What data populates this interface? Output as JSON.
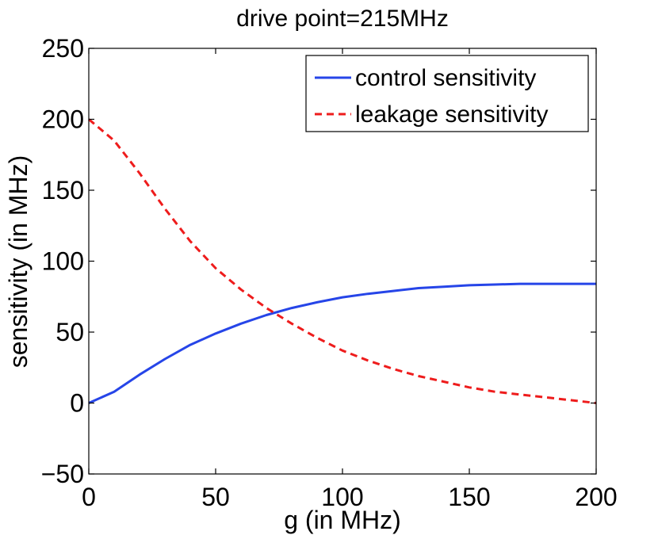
{
  "chart_data": {
    "type": "line",
    "title": "drive point=215MHz",
    "xlabel": "g  (in MHz)",
    "ylabel": "sensitivity (in MHz)",
    "xlim": [
      0,
      200
    ],
    "ylim": [
      -50,
      250
    ],
    "xticks": [
      0,
      50,
      100,
      150,
      200
    ],
    "yticks": [
      -50,
      0,
      50,
      100,
      150,
      200,
      250
    ],
    "ytick_labels": [
      "−50",
      "0",
      "50",
      "100",
      "150",
      "200",
      "250"
    ],
    "grid": false,
    "legend_position": "top-right",
    "x": [
      0,
      10,
      20,
      30,
      40,
      50,
      60,
      70,
      80,
      90,
      100,
      110,
      120,
      130,
      140,
      150,
      160,
      170,
      180,
      190,
      200
    ],
    "series": [
      {
        "name": "control sensitivity",
        "color": "#2645e8",
        "style": "solid",
        "values": [
          0,
          8,
          20,
          31,
          41,
          49,
          56,
          62,
          67,
          71,
          74.5,
          77,
          79,
          81,
          82,
          83,
          83.5,
          84,
          84,
          84,
          84
        ]
      },
      {
        "name": "leakage sensitivity",
        "color": "#ee1c1c",
        "style": "dashed",
        "values": [
          200,
          185,
          162,
          137,
          114,
          95,
          80,
          67,
          56,
          46,
          37,
          30,
          24,
          19,
          15,
          11,
          8,
          6,
          4,
          2,
          0
        ]
      }
    ]
  }
}
